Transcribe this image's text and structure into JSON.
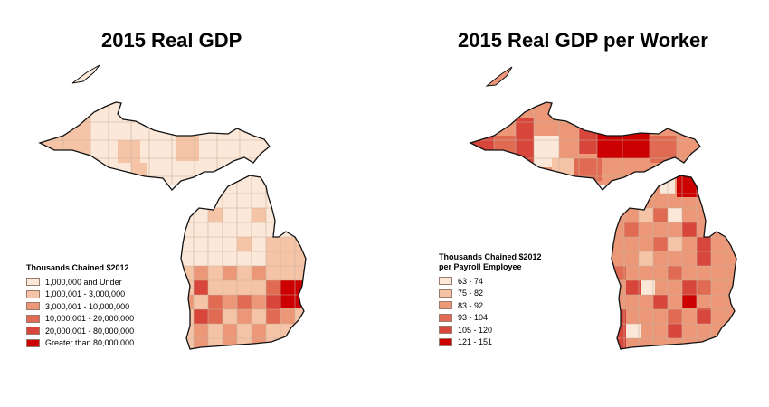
{
  "maps": [
    {
      "title": "2015 Real GDP",
      "legend_title": "Thousands Chained $2012",
      "classes": [
        {
          "label": "1,000,000 and Under",
          "color": "#fce8d8"
        },
        {
          "label": "1,000,001 - 3,000,000",
          "color": "#f5c4a6"
        },
        {
          "label": "3,000,001 - 10,000,000",
          "color": "#ec9878"
        },
        {
          "label": "10,000,001 - 20,000,000",
          "color": "#e06b52"
        },
        {
          "label": "20,000,001 - 80,000,000",
          "color": "#d8453a"
        },
        {
          "label": "Greater than 80,000,000",
          "color": "#cc0000"
        }
      ]
    },
    {
      "title": "2015 Real GDP per Worker",
      "legend_title": "Thousands Chained $2012\nper Payroll Employee",
      "classes": [
        {
          "label": "63 - 74",
          "color": "#fce8d8"
        },
        {
          "label": "75 - 82",
          "color": "#f5c4a6"
        },
        {
          "label": "83 - 92",
          "color": "#ec9878"
        },
        {
          "label": "93 - 104",
          "color": "#e06b52"
        },
        {
          "label": "105 - 120",
          "color": "#d8453a"
        },
        {
          "label": "121 - 151",
          "color": "#cc0000"
        }
      ]
    }
  ]
}
